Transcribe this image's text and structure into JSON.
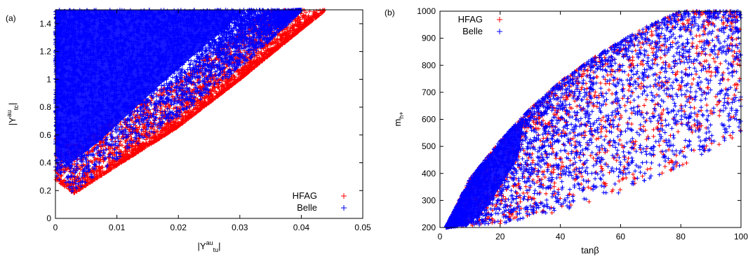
{
  "colors": {
    "HFAG": "#ff0000",
    "Belle": "#0000ff",
    "axis": "#000000"
  },
  "chart_data": [
    {
      "panel_label": "(a)",
      "type": "scatter",
      "xlabel": {
        "base": "|Y",
        "sup": "au",
        "sub": "tu",
        "end": "|"
      },
      "ylabel": {
        "base": "|Y",
        "sup": "au",
        "sub": "tc",
        "end": "|"
      },
      "xlim": [
        0,
        0.05
      ],
      "ylim": [
        0,
        1.5
      ],
      "xticks": [
        0,
        0.01,
        0.02,
        0.03,
        0.04,
        0.05
      ],
      "xtick_labels": [
        "0",
        "0.01",
        "0.02",
        "0.03",
        "0.04",
        "0.05"
      ],
      "yticks": [
        0,
        0.2,
        0.4,
        0.6,
        0.8,
        1.0,
        1.2,
        1.4
      ],
      "ytick_labels": [
        "0",
        "0.2",
        "0.4",
        "0.6",
        "0.8",
        "1",
        "1.2",
        "1.4"
      ],
      "legend_position": "bottom-right",
      "series": [
        {
          "name": "HFAG",
          "color": "#ff0000",
          "boundary": [
            [
              0.0,
              0.28
            ],
            [
              0.003,
              0.18
            ],
            [
              0.01,
              0.38
            ],
            [
              0.02,
              0.66
            ],
            [
              0.03,
              1.0
            ],
            [
              0.04,
              1.36
            ],
            [
              0.044,
              1.5
            ]
          ]
        },
        {
          "name": "Belle",
          "color": "#0000ff",
          "boundary": [
            [
              0.0,
              0.3
            ],
            [
              0.003,
              0.18
            ],
            [
              0.01,
              0.42
            ],
            [
              0.02,
              0.72
            ],
            [
              0.03,
              1.08
            ],
            [
              0.038,
              1.4
            ],
            [
              0.04,
              1.5
            ]
          ]
        }
      ]
    },
    {
      "panel_label": "(b)",
      "type": "scatter",
      "xlabel": {
        "base": "tanβ"
      },
      "ylabel": {
        "base": "m",
        "sub": "h+"
      },
      "xlim": [
        0,
        100
      ],
      "ylim": [
        200,
        1000
      ],
      "xticks": [
        0,
        20,
        40,
        60,
        80,
        100
      ],
      "xtick_labels": [
        "0",
        "20",
        "40",
        "60",
        "80",
        "100"
      ],
      "yticks": [
        200,
        300,
        400,
        500,
        600,
        700,
        800,
        900,
        1000
      ],
      "ytick_labels": [
        "200",
        "300",
        "400",
        "500",
        "600",
        "700",
        "800",
        "900",
        "1000"
      ],
      "legend_position": "top-left",
      "series": [
        {
          "name": "HFAG",
          "color": "#ff0000",
          "upper_boundary": [
            [
              2,
              200
            ],
            [
              10,
              380
            ],
            [
              20,
              520
            ],
            [
              30,
              640
            ],
            [
              40,
              740
            ],
            [
              50,
              820
            ],
            [
              60,
              890
            ],
            [
              70,
              950
            ],
            [
              80,
              1000
            ]
          ],
          "lower_boundary": [
            [
              2,
              200
            ],
            [
              20,
              215
            ],
            [
              40,
              260
            ],
            [
              60,
              330
            ],
            [
              80,
              420
            ],
            [
              100,
              550
            ]
          ]
        },
        {
          "name": "Belle",
          "color": "#0000ff",
          "upper_boundary": [
            [
              2,
              200
            ],
            [
              10,
              380
            ],
            [
              20,
              520
            ],
            [
              30,
              640
            ],
            [
              40,
              740
            ],
            [
              50,
              820
            ],
            [
              60,
              890
            ],
            [
              70,
              950
            ],
            [
              80,
              1000
            ]
          ],
          "lower_boundary": [
            [
              2,
              200
            ],
            [
              20,
              215
            ],
            [
              40,
              260
            ],
            [
              60,
              330
            ],
            [
              80,
              420
            ],
            [
              100,
              550
            ]
          ]
        }
      ]
    }
  ]
}
